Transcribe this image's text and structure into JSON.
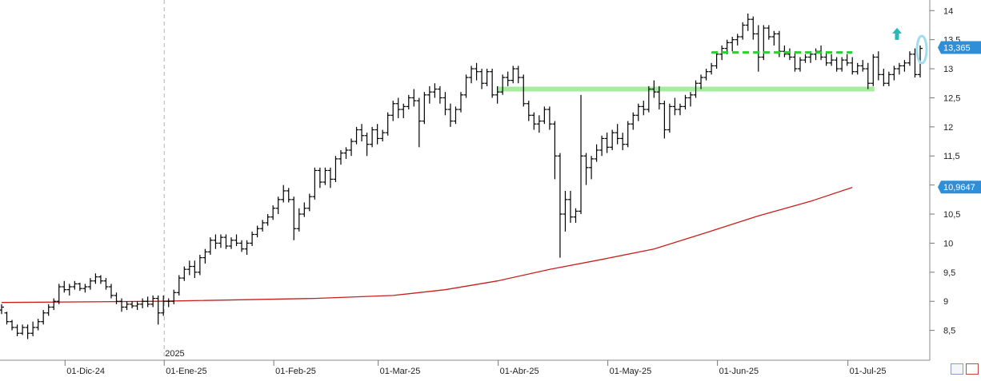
{
  "chart_data": {
    "type": "ohlc",
    "title": "",
    "ylim": [
      8,
      14.1
    ],
    "y_ticks": [
      "8,5",
      "9",
      "9,5",
      "10",
      "10,5",
      "11",
      "11,5",
      "12",
      "12,5",
      "13",
      "13,5",
      "14"
    ],
    "x_labels": [
      "01-Dic-24",
      "01-Ene-25",
      "01-Feb-25",
      "01-Mar-25",
      "01-Abr-25",
      "01-May-25",
      "01-Jun-25",
      "01-Jul-25"
    ],
    "year_marker": "2025",
    "price_tags": [
      {
        "label": "13,365",
        "value": 13.365,
        "color": "#2e8fd8"
      },
      {
        "label": "10,9647",
        "value": 10.9647,
        "color": "#2e8fd8"
      }
    ],
    "series": [
      {
        "kind": "ohlc",
        "color": "#000000",
        "bars": [
          [
            8.85,
            8.95,
            8.78,
            8.9
          ],
          [
            8.8,
            8.82,
            8.6,
            8.65
          ],
          [
            8.65,
            8.68,
            8.5,
            8.55
          ],
          [
            8.55,
            8.6,
            8.4,
            8.45
          ],
          [
            8.45,
            8.6,
            8.42,
            8.55
          ],
          [
            8.55,
            8.6,
            8.35,
            8.45
          ],
          [
            8.45,
            8.65,
            8.4,
            8.55
          ],
          [
            8.55,
            8.7,
            8.5,
            8.65
          ],
          [
            8.65,
            8.85,
            8.6,
            8.8
          ],
          [
            8.8,
            8.95,
            8.75,
            8.9
          ],
          [
            8.9,
            9.05,
            8.85,
            9.0
          ],
          [
            9.0,
            9.3,
            8.95,
            9.25
          ],
          [
            9.25,
            9.35,
            9.15,
            9.2
          ],
          [
            9.2,
            9.3,
            9.1,
            9.25
          ],
          [
            9.25,
            9.35,
            9.2,
            9.3
          ],
          [
            9.3,
            9.32,
            9.18,
            9.22
          ],
          [
            9.22,
            9.3,
            9.15,
            9.25
          ],
          [
            9.25,
            9.4,
            9.2,
            9.35
          ],
          [
            9.35,
            9.48,
            9.3,
            9.42
          ],
          [
            9.42,
            9.45,
            9.3,
            9.35
          ],
          [
            9.35,
            9.4,
            9.2,
            9.25
          ],
          [
            9.25,
            9.3,
            9.05,
            9.1
          ],
          [
            9.1,
            9.15,
            8.95,
            9.0
          ],
          [
            9.0,
            9.05,
            8.82,
            8.9
          ],
          [
            8.9,
            9.0,
            8.85,
            8.95
          ],
          [
            8.95,
            9.0,
            8.88,
            8.92
          ],
          [
            8.92,
            9.0,
            8.85,
            8.95
          ],
          [
            8.95,
            9.05,
            8.88,
            9.0
          ],
          [
            9.0,
            9.08,
            8.9,
            8.95
          ],
          [
            8.95,
            9.1,
            8.9,
            9.05
          ],
          [
            9.05,
            9.1,
            8.6,
            8.8
          ],
          [
            8.8,
            9.1,
            8.75,
            9.0
          ],
          [
            9.0,
            9.05,
            8.9,
            9.0
          ],
          [
            9.0,
            9.2,
            8.95,
            9.15
          ],
          [
            9.15,
            9.45,
            9.1,
            9.4
          ],
          [
            9.4,
            9.6,
            9.35,
            9.55
          ],
          [
            9.55,
            9.7,
            9.45,
            9.6
          ],
          [
            9.6,
            9.7,
            9.4,
            9.5
          ],
          [
            9.5,
            9.8,
            9.45,
            9.75
          ],
          [
            9.75,
            9.9,
            9.65,
            9.85
          ],
          [
            9.85,
            10.1,
            9.8,
            10.05
          ],
          [
            10.05,
            10.15,
            9.9,
            10.0
          ],
          [
            10.0,
            10.15,
            9.92,
            10.1
          ],
          [
            10.1,
            10.15,
            9.9,
            9.95
          ],
          [
            9.95,
            10.1,
            9.9,
            10.05
          ],
          [
            10.05,
            10.15,
            9.95,
            10.0
          ],
          [
            10.0,
            10.05,
            9.85,
            9.9
          ],
          [
            9.9,
            10.05,
            9.8,
            10.0
          ],
          [
            10.0,
            10.2,
            9.95,
            10.15
          ],
          [
            10.15,
            10.3,
            10.1,
            10.25
          ],
          [
            10.25,
            10.4,
            10.2,
            10.35
          ],
          [
            10.35,
            10.5,
            10.3,
            10.45
          ],
          [
            10.45,
            10.65,
            10.4,
            10.6
          ],
          [
            10.6,
            10.8,
            10.5,
            10.75
          ],
          [
            10.75,
            11.0,
            10.7,
            10.9
          ],
          [
            10.9,
            10.95,
            10.7,
            10.75
          ],
          [
            10.75,
            10.8,
            10.05,
            10.25
          ],
          [
            10.25,
            10.6,
            10.2,
            10.5
          ],
          [
            10.5,
            10.7,
            10.45,
            10.6
          ],
          [
            10.6,
            10.85,
            10.55,
            10.8
          ],
          [
            10.8,
            11.3,
            10.75,
            11.25
          ],
          [
            11.25,
            11.3,
            10.95,
            11.05
          ],
          [
            11.05,
            11.3,
            11.0,
            11.25
          ],
          [
            11.25,
            11.3,
            10.95,
            11.1
          ],
          [
            11.1,
            11.5,
            11.05,
            11.45
          ],
          [
            11.45,
            11.6,
            11.35,
            11.55
          ],
          [
            11.55,
            11.65,
            11.45,
            11.6
          ],
          [
            11.6,
            11.8,
            11.5,
            11.75
          ],
          [
            11.75,
            12.0,
            11.7,
            11.95
          ],
          [
            11.95,
            12.05,
            11.75,
            11.85
          ],
          [
            11.85,
            11.9,
            11.5,
            11.7
          ],
          [
            11.7,
            12.0,
            11.65,
            11.95
          ],
          [
            11.95,
            12.05,
            11.7,
            11.8
          ],
          [
            11.8,
            11.95,
            11.75,
            11.9
          ],
          [
            11.9,
            12.25,
            11.85,
            12.2
          ],
          [
            12.2,
            12.45,
            12.1,
            12.4
          ],
          [
            12.4,
            12.5,
            12.15,
            12.3
          ],
          [
            12.3,
            12.4,
            12.15,
            12.35
          ],
          [
            12.35,
            12.55,
            12.3,
            12.5
          ],
          [
            12.5,
            12.65,
            12.35,
            12.45
          ],
          [
            12.45,
            12.5,
            11.65,
            12.1
          ],
          [
            12.1,
            12.6,
            12.05,
            12.55
          ],
          [
            12.55,
            12.7,
            12.4,
            12.6
          ],
          [
            12.6,
            12.75,
            12.5,
            12.65
          ],
          [
            12.65,
            12.7,
            12.4,
            12.5
          ],
          [
            12.5,
            12.6,
            12.2,
            12.3
          ],
          [
            12.3,
            12.4,
            12.0,
            12.1
          ],
          [
            12.1,
            12.35,
            12.05,
            12.3
          ],
          [
            12.3,
            12.6,
            12.25,
            12.55
          ],
          [
            12.55,
            12.9,
            12.5,
            12.85
          ],
          [
            12.85,
            13.05,
            12.75,
            13.0
          ],
          [
            13.0,
            13.1,
            12.8,
            12.95
          ],
          [
            12.95,
            13.0,
            12.65,
            12.75
          ],
          [
            12.75,
            13.0,
            12.7,
            12.95
          ],
          [
            12.95,
            13.0,
            12.5,
            12.55
          ],
          [
            12.55,
            12.7,
            12.4,
            12.6
          ],
          [
            12.6,
            12.9,
            12.55,
            12.85
          ],
          [
            12.85,
            12.95,
            12.7,
            12.8
          ],
          [
            12.8,
            13.05,
            12.75,
            13.0
          ],
          [
            13.0,
            13.05,
            12.75,
            12.85
          ],
          [
            12.85,
            12.9,
            12.35,
            12.4
          ],
          [
            12.4,
            12.45,
            12.1,
            12.2
          ],
          [
            12.2,
            12.25,
            11.95,
            12.05
          ],
          [
            12.05,
            12.2,
            11.9,
            12.1
          ],
          [
            12.1,
            12.35,
            12.05,
            12.3
          ],
          [
            12.3,
            12.35,
            11.95,
            12.05
          ],
          [
            12.05,
            12.1,
            11.1,
            11.5
          ],
          [
            11.5,
            11.55,
            9.75,
            10.5
          ],
          [
            10.5,
            10.9,
            10.2,
            10.75
          ],
          [
            10.75,
            10.9,
            10.35,
            10.45
          ],
          [
            10.45,
            10.6,
            10.35,
            10.55
          ],
          [
            10.55,
            12.55,
            10.5,
            11.5
          ],
          [
            11.5,
            11.55,
            11.0,
            11.3
          ],
          [
            11.3,
            11.5,
            11.1,
            11.45
          ],
          [
            11.45,
            11.7,
            11.4,
            11.6
          ],
          [
            11.6,
            11.85,
            11.5,
            11.8
          ],
          [
            11.8,
            11.9,
            11.55,
            11.65
          ],
          [
            11.65,
            11.95,
            11.6,
            11.9
          ],
          [
            11.9,
            12.05,
            11.7,
            11.8
          ],
          [
            11.8,
            11.9,
            11.6,
            11.7
          ],
          [
            11.7,
            12.1,
            11.65,
            12.05
          ],
          [
            12.05,
            12.25,
            11.95,
            12.2
          ],
          [
            12.2,
            12.4,
            12.1,
            12.35
          ],
          [
            12.35,
            12.45,
            12.2,
            12.3
          ],
          [
            12.3,
            12.7,
            12.25,
            12.65
          ],
          [
            12.65,
            12.8,
            12.5,
            12.6
          ],
          [
            12.6,
            12.7,
            12.3,
            12.4
          ],
          [
            12.4,
            12.45,
            11.8,
            11.95
          ],
          [
            11.95,
            12.4,
            11.9,
            12.35
          ],
          [
            12.35,
            12.5,
            12.2,
            12.3
          ],
          [
            12.3,
            12.4,
            12.2,
            12.35
          ],
          [
            12.35,
            12.55,
            12.3,
            12.5
          ],
          [
            12.5,
            12.6,
            12.35,
            12.55
          ],
          [
            12.55,
            12.8,
            12.5,
            12.75
          ],
          [
            12.75,
            12.9,
            12.65,
            12.85
          ],
          [
            12.85,
            13.0,
            12.8,
            12.95
          ],
          [
            12.95,
            13.1,
            12.9,
            13.05
          ],
          [
            13.05,
            13.3,
            13.0,
            13.25
          ],
          [
            13.25,
            13.4,
            13.15,
            13.35
          ],
          [
            13.35,
            13.5,
            13.25,
            13.45
          ],
          [
            13.45,
            13.55,
            13.3,
            13.5
          ],
          [
            13.5,
            13.6,
            13.4,
            13.55
          ],
          [
            13.55,
            13.8,
            13.5,
            13.75
          ],
          [
            13.75,
            13.95,
            13.65,
            13.85
          ],
          [
            13.85,
            13.9,
            13.5,
            13.6
          ],
          [
            13.6,
            13.75,
            12.95,
            13.2
          ],
          [
            13.2,
            13.75,
            13.15,
            13.7
          ],
          [
            13.7,
            13.75,
            13.5,
            13.55
          ],
          [
            13.55,
            13.65,
            13.4,
            13.6
          ],
          [
            13.6,
            13.65,
            13.2,
            13.3
          ],
          [
            13.3,
            13.4,
            13.2,
            13.25
          ],
          [
            13.25,
            13.35,
            13.15,
            13.2
          ],
          [
            13.2,
            13.3,
            12.95,
            13.0
          ],
          [
            13.0,
            13.2,
            12.95,
            13.15
          ],
          [
            13.15,
            13.25,
            13.1,
            13.2
          ],
          [
            13.2,
            13.3,
            13.1,
            13.25
          ],
          [
            13.25,
            13.35,
            13.15,
            13.3
          ],
          [
            13.3,
            13.4,
            13.15,
            13.2
          ],
          [
            13.2,
            13.3,
            13.05,
            13.1
          ],
          [
            13.1,
            13.25,
            13.05,
            13.15
          ],
          [
            13.15,
            13.2,
            12.95,
            13.0
          ],
          [
            13.0,
            13.2,
            12.95,
            13.15
          ],
          [
            13.15,
            13.25,
            13.05,
            13.1
          ],
          [
            13.1,
            13.2,
            12.9,
            12.95
          ],
          [
            12.95,
            13.1,
            12.9,
            13.05
          ],
          [
            13.05,
            13.15,
            12.95,
            13.0
          ],
          [
            13.0,
            13.1,
            12.65,
            12.75
          ],
          [
            12.75,
            13.25,
            12.7,
            13.2
          ],
          [
            13.2,
            13.3,
            12.8,
            12.9
          ],
          [
            12.9,
            13.0,
            12.7,
            12.75
          ],
          [
            12.75,
            12.95,
            12.7,
            12.9
          ],
          [
            12.9,
            13.05,
            12.8,
            13.0
          ],
          [
            13.0,
            13.1,
            12.9,
            13.05
          ],
          [
            13.05,
            13.15,
            12.95,
            13.1
          ],
          [
            13.1,
            13.3,
            13.05,
            13.25
          ],
          [
            13.25,
            13.35,
            12.85,
            12.9
          ],
          [
            12.9,
            13.4,
            12.85,
            13.35
          ]
        ]
      },
      {
        "kind": "moving-average",
        "color": "#c81e1e",
        "points": [
          [
            0,
            8.98
          ],
          [
            30,
            9.0
          ],
          [
            60,
            9.05
          ],
          [
            75,
            9.1
          ],
          [
            85,
            9.2
          ],
          [
            95,
            9.35
          ],
          [
            105,
            9.55
          ],
          [
            115,
            9.72
          ],
          [
            125,
            9.9
          ],
          [
            135,
            10.18
          ],
          [
            145,
            10.47
          ],
          [
            155,
            10.72
          ],
          [
            163,
            10.96
          ]
        ]
      }
    ],
    "annotations": [
      {
        "kind": "support-line",
        "value": 12.65,
        "color": "#a6eba0",
        "from_bar": 95,
        "to_bar": 166
      },
      {
        "kind": "resistance-line",
        "value": 13.28,
        "color": "#2ccf2c",
        "from_bar": 136,
        "to_bar": 163,
        "dashed": true
      },
      {
        "kind": "breakout-arrow",
        "value": 13.58,
        "color": "#28b8b8"
      },
      {
        "kind": "highlight-ellipse",
        "value": 13.33,
        "color": "#9fdcef"
      }
    ],
    "grid": false
  }
}
